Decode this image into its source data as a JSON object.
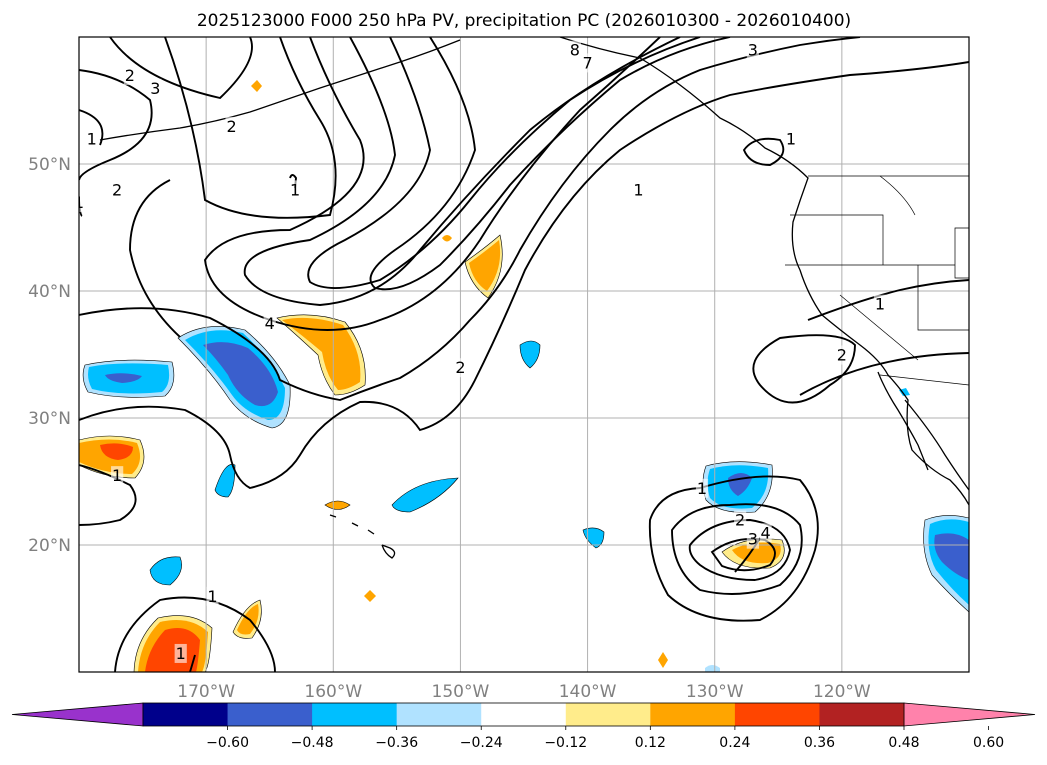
{
  "title": "2025123000 F000 250 hPa PV, precipitation PC (2026010300 - 2026010400)",
  "map": {
    "projection": "plate-carree",
    "lon_range": [
      -180,
      -110
    ],
    "lat_range": [
      10,
      60
    ],
    "grid": true,
    "lon_ticks": [
      {
        "value": -170,
        "label": "170°W"
      },
      {
        "value": -160,
        "label": "160°W"
      },
      {
        "value": -150,
        "label": "150°W"
      },
      {
        "value": -140,
        "label": "140°W"
      },
      {
        "value": -130,
        "label": "130°W"
      },
      {
        "value": -120,
        "label": "120°W"
      }
    ],
    "lat_ticks": [
      {
        "value": 50,
        "label": "50°N"
      },
      {
        "value": 40,
        "label": "40°N"
      },
      {
        "value": 30,
        "label": "30°N"
      },
      {
        "value": 20,
        "label": "20°N"
      }
    ]
  },
  "colorbar": {
    "orientation": "horizontal",
    "extend": "both",
    "colors": [
      "#9932cc",
      "#00008b",
      "#3a5fcd",
      "#00bfff",
      "#b0e2ff",
      "#ffffff",
      "#ffec8b",
      "#ffa500",
      "#ff4500",
      "#b22222",
      "#ff82ab"
    ],
    "labels": [
      "−0.60",
      "−0.48",
      "−0.36",
      "−0.24",
      "−0.12",
      "0.12",
      "0.24",
      "0.36",
      "0.48",
      "0.60"
    ]
  },
  "contour_labels": [
    {
      "text": "1",
      "lon": -179,
      "lat": 52
    },
    {
      "text": "2",
      "lon": -177,
      "lat": 48
    },
    {
      "text": "1",
      "lon": -180,
      "lat": 47
    },
    {
      "text": "2",
      "lon": -176,
      "lat": 57
    },
    {
      "text": "3",
      "lon": -174,
      "lat": 56
    },
    {
      "text": "2",
      "lon": -168,
      "lat": 53
    },
    {
      "text": "1",
      "lon": -163,
      "lat": 48
    },
    {
      "text": "4",
      "lon": -165,
      "lat": 37.5
    },
    {
      "text": "2",
      "lon": -150,
      "lat": 34
    },
    {
      "text": "1",
      "lon": -136,
      "lat": 48
    },
    {
      "text": "8",
      "lon": -141,
      "lat": 59
    },
    {
      "text": "7",
      "lon": -140,
      "lat": 58
    },
    {
      "text": "3",
      "lon": -127,
      "lat": 59
    },
    {
      "text": "1",
      "lon": -124,
      "lat": 52
    },
    {
      "text": "1",
      "lon": -117,
      "lat": 39
    },
    {
      "text": "2",
      "lon": -120,
      "lat": 35
    },
    {
      "text": "1",
      "lon": -177,
      "lat": 25.5
    },
    {
      "text": "1",
      "lon": -169.5,
      "lat": 16
    },
    {
      "text": "1",
      "lon": -172,
      "lat": 11.5
    },
    {
      "text": "1",
      "lon": -131,
      "lat": 24.5
    },
    {
      "text": "2",
      "lon": -128,
      "lat": 22
    },
    {
      "text": "3",
      "lon": -127,
      "lat": 20.5
    },
    {
      "text": "4",
      "lon": -126,
      "lat": 21
    }
  ]
}
